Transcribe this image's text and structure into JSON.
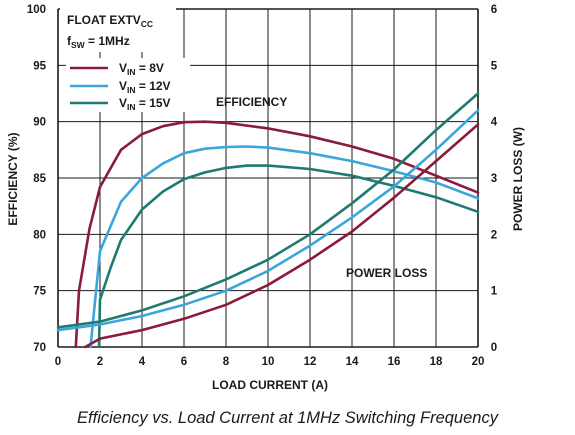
{
  "caption": "Efficiency vs. Load Current at 1MHz Switching Frequency",
  "colors": {
    "vin8": "#8b1a3c",
    "vin12": "#3aa6dc",
    "vin15": "#1f7a70",
    "grid": "#1a1a1a"
  },
  "chart_data": {
    "type": "line",
    "xlabel": "LOAD CURRENT (A)",
    "ylabel": "EFFICIENCY (%)",
    "y2label": "POWER LOSS (W)",
    "xlim": [
      0,
      20
    ],
    "ylim": [
      70,
      100
    ],
    "y2lim": [
      0,
      6
    ],
    "xticks": [
      "0",
      "2",
      "4",
      "6",
      "8",
      "10",
      "12",
      "14",
      "16",
      "18",
      "20"
    ],
    "yticks": [
      "70",
      "75",
      "80",
      "85",
      "90",
      "95",
      "100"
    ],
    "y2ticks": [
      "0",
      "1",
      "2",
      "3",
      "4",
      "5",
      "6"
    ],
    "grid": true,
    "conditions": {
      "line1_main": "FLOAT EXTV",
      "line1_sub": "CC",
      "line2_main": "f",
      "line2_sub": "SW",
      "line2_rest": " = 1MHz"
    },
    "annotations": {
      "efficiency": "EFFICIENCY",
      "power_loss": "POWER LOSS"
    },
    "legend": {
      "position": "top-left",
      "entries": [
        {
          "main": "V",
          "sub": "IN",
          "rest": " = 8V",
          "series": 0
        },
        {
          "main": "V",
          "sub": "IN",
          "rest": " = 12V",
          "series": 1
        },
        {
          "main": "V",
          "sub": "IN",
          "rest": " = 15V",
          "series": 2
        }
      ]
    },
    "series": [
      {
        "name": "VIN = 8V",
        "color": "#8b1a3c",
        "axis": "left",
        "kind": "efficiency",
        "x": [
          0.85,
          1.0,
          1.5,
          2.0,
          3.0,
          4.0,
          5.0,
          6.0,
          7.0,
          8.0,
          10.0,
          12.0,
          14.0,
          16.0,
          18.0,
          20.0
        ],
        "y": [
          70.0,
          75.0,
          80.5,
          84.2,
          87.5,
          88.9,
          89.6,
          89.95,
          90.0,
          89.9,
          89.4,
          88.7,
          87.8,
          86.7,
          85.2,
          83.7
        ]
      },
      {
        "name": "VIN = 12V",
        "color": "#3aa6dc",
        "axis": "left",
        "kind": "efficiency",
        "x": [
          1.55,
          2.0,
          3.0,
          4.0,
          5.0,
          6.0,
          7.0,
          8.0,
          9.0,
          10.0,
          12.0,
          14.0,
          16.0,
          18.0,
          20.0
        ],
        "y": [
          70.0,
          78.5,
          82.9,
          85.0,
          86.3,
          87.2,
          87.6,
          87.75,
          87.8,
          87.7,
          87.2,
          86.5,
          85.6,
          84.6,
          83.2
        ]
      },
      {
        "name": "VIN = 15V",
        "color": "#1f7a70",
        "axis": "left",
        "kind": "efficiency",
        "x": [
          1.95,
          2.0,
          2.5,
          3.0,
          4.0,
          5.0,
          6.0,
          7.0,
          8.0,
          9.0,
          10.0,
          12.0,
          14.0,
          16.0,
          18.0,
          20.0
        ],
        "y": [
          70.0,
          74.2,
          77.0,
          79.5,
          82.2,
          83.8,
          84.9,
          85.5,
          85.9,
          86.1,
          86.1,
          85.8,
          85.2,
          84.3,
          83.3,
          82.0
        ]
      },
      {
        "name": "VIN = 8V",
        "color": "#8b1a3c",
        "axis": "right",
        "kind": "power_loss",
        "x": [
          1.3,
          2.0,
          4.0,
          6.0,
          8.0,
          10.0,
          12.0,
          14.0,
          16.0,
          18.0,
          20.0
        ],
        "y": [
          0.0,
          0.15,
          0.3,
          0.5,
          0.75,
          1.1,
          1.55,
          2.05,
          2.65,
          3.3,
          3.95
        ]
      },
      {
        "name": "VIN = 12V",
        "color": "#3aa6dc",
        "axis": "right",
        "kind": "power_loss",
        "x": [
          0,
          1,
          2,
          4,
          6,
          8,
          10,
          12,
          14,
          16,
          18,
          20
        ],
        "y": [
          0.3,
          0.35,
          0.4,
          0.55,
          0.75,
          1.0,
          1.35,
          1.8,
          2.3,
          2.85,
          3.5,
          4.2
        ]
      },
      {
        "name": "VIN = 15V",
        "color": "#1f7a70",
        "axis": "right",
        "kind": "power_loss",
        "x": [
          0,
          1,
          2,
          4,
          6,
          8,
          10,
          12,
          14,
          16,
          18,
          20
        ],
        "y": [
          0.35,
          0.4,
          0.45,
          0.65,
          0.9,
          1.2,
          1.55,
          2.0,
          2.55,
          3.15,
          3.85,
          4.5
        ]
      }
    ]
  }
}
